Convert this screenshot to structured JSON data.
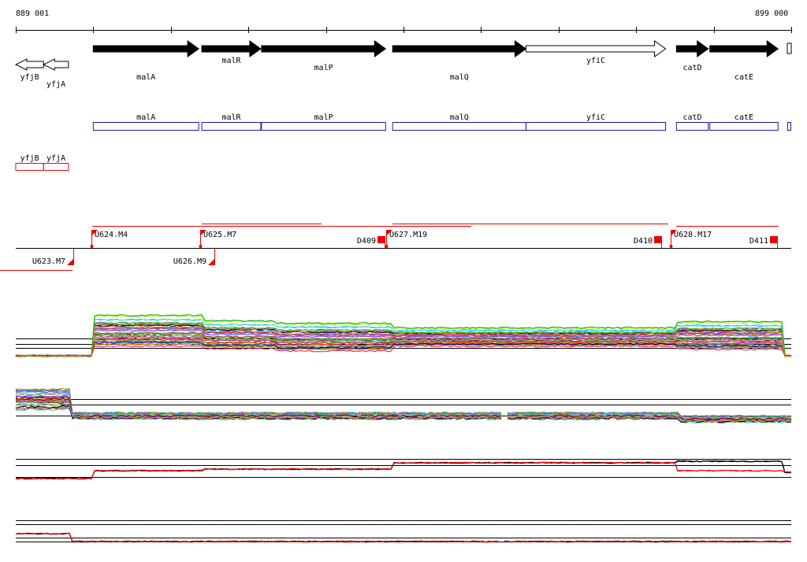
{
  "ruler": {
    "start_label": "889 001",
    "end_label": "899 000"
  },
  "colors": {
    "gene_fill": "#000000",
    "gene_open_fill": "#ffffff",
    "annotation_blue": "#1a1aa6",
    "annotation_red": "#dd1111",
    "marker_red": "#ee0000",
    "profile_black": "#000000",
    "profile_red": "#ee1111"
  },
  "genes": [
    {
      "name": "yfjB",
      "strand": "-",
      "start": 889001,
      "end": 889360,
      "filled": false,
      "label_row": "low"
    },
    {
      "name": "yfjA",
      "strand": "-",
      "start": 889360,
      "end": 889680,
      "filled": false,
      "label_row": "lower"
    },
    {
      "name": "malA",
      "strand": "+",
      "start": 890000,
      "end": 891360,
      "filled": true,
      "label_row": "low"
    },
    {
      "name": "malR",
      "strand": "+",
      "start": 891400,
      "end": 892160,
      "filled": true,
      "label_row": "high"
    },
    {
      "name": "malP",
      "strand": "+",
      "start": 892170,
      "end": 893770,
      "filled": true,
      "label_row": "mid"
    },
    {
      "name": "malQ",
      "strand": "+",
      "start": 893860,
      "end": 895580,
      "filled": true,
      "label_row": "low"
    },
    {
      "name": "yfiC",
      "strand": "+",
      "start": 895580,
      "end": 897380,
      "filled": false,
      "label_row": "high"
    },
    {
      "name": "catD",
      "strand": "+",
      "start": 897520,
      "end": 897930,
      "filled": true,
      "label_row": "mid"
    },
    {
      "name": "catE",
      "strand": "+",
      "start": 897950,
      "end": 898830,
      "filled": true,
      "label_row": "low"
    }
  ],
  "annotation_blue_labels": [
    "malA",
    "malR",
    "malP",
    "malQ",
    "yfiC",
    "catD",
    "catE"
  ],
  "annotation_red_labels": [
    "yfjB",
    "yfjA"
  ],
  "markers": [
    {
      "label": "U623.M7",
      "type": "U",
      "position": 889740,
      "track": "lower"
    },
    {
      "label": "U624.M4",
      "type": "U",
      "position": 889980,
      "track": "upper"
    },
    {
      "label": "U625.M7",
      "type": "U",
      "position": 891380,
      "track": "upper"
    },
    {
      "label": "U626.M9",
      "type": "U",
      "position": 891560,
      "track": "lower"
    },
    {
      "label": "D409",
      "type": "D",
      "position": 893720,
      "track": "upper"
    },
    {
      "label": "U627.M19",
      "type": "U",
      "position": 893780,
      "track": "upper"
    },
    {
      "label": "D410",
      "type": "D",
      "position": 897280,
      "track": "upper"
    },
    {
      "label": "U628.M17",
      "type": "U",
      "position": 897450,
      "track": "upper"
    },
    {
      "label": "D411",
      "type": "D",
      "position": 898780,
      "track": "upper"
    }
  ]
}
